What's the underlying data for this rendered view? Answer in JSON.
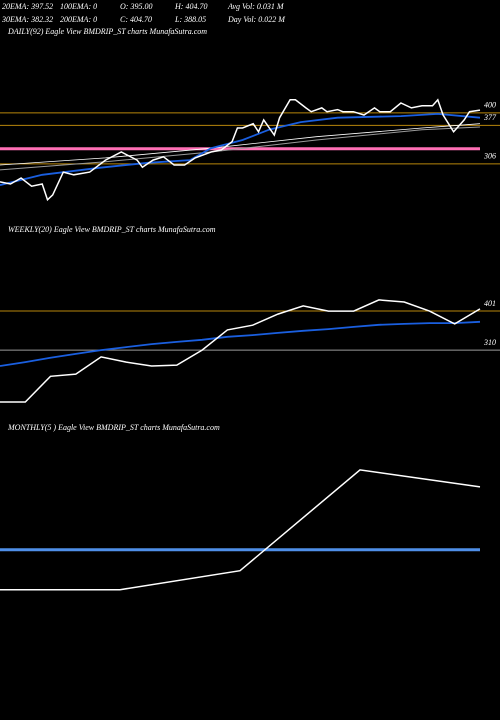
{
  "header": [
    [
      "20EMA: 397.52",
      "100EMA: 0",
      "O: 395.00",
      "H: 404.70",
      "Avg Vol: 0.031 M"
    ],
    [
      "30EMA: 382.32",
      "200EMA: 0",
      "C: 404.70",
      "L: 388.05",
      "Day Vol: 0.022 M"
    ]
  ],
  "chart_data": [
    {
      "type": "line",
      "title": "DAILY(92) Eagle  View  BMDRIP_ST charts MunafaSutra.com",
      "xlim": [
        0,
        91
      ],
      "ylim": [
        212,
        534
      ],
      "yticks": [
        400,
        377,
        306
      ],
      "grid_colors": [
        "#b8860b",
        "#b8860b",
        "#b8860b"
      ],
      "reference_lines": [
        334
      ],
      "reference_color": "#ff6fb5",
      "series": [
        {
          "color": "#9a9a9a",
          "width": 1,
          "x": [
            0,
            20,
            40,
            60,
            80,
            91
          ],
          "values": [
            295,
            310,
            328,
            350,
            369,
            374
          ]
        },
        {
          "color": "#ffffff",
          "width": 0.8,
          "x": [
            0,
            20,
            40,
            60,
            80,
            91
          ],
          "values": [
            304,
            317,
            335,
            356,
            372,
            380
          ]
        },
        {
          "color": "#1a5fe0",
          "width": 1.8,
          "x": [
            0,
            8,
            19,
            28,
            36,
            40,
            46,
            51,
            57,
            64,
            76,
            83,
            91
          ],
          "values": [
            267,
            286,
            299,
            308,
            313,
            335,
            350,
            369,
            383,
            391,
            394,
            398,
            391
          ]
        },
        {
          "color": "#ffffff",
          "width": 1.5,
          "x": [
            0,
            2,
            4,
            6,
            8,
            9,
            10,
            12,
            14,
            17,
            20,
            23,
            26,
            27,
            29,
            31,
            33,
            35,
            37,
            40,
            42,
            44,
            45,
            46,
            48,
            49,
            50,
            52,
            53,
            55,
            56,
            58,
            59,
            61,
            62,
            64,
            65,
            67,
            69,
            71,
            72,
            74,
            76,
            78,
            80,
            82,
            83,
            84,
            86,
            88,
            89,
            91
          ],
          "values": [
            273,
            269,
            280,
            265,
            269,
            240,
            249,
            291,
            286,
            291,
            313,
            328,
            313,
            300,
            313,
            319,
            304,
            304,
            317,
            328,
            332,
            347,
            372,
            372,
            380,
            365,
            387,
            359,
            391,
            424,
            424,
            409,
            402,
            409,
            402,
            406,
            402,
            402,
            396,
            409,
            402,
            402,
            418,
            409,
            413,
            413,
            424,
            396,
            365,
            387,
            402,
            405
          ]
        }
      ]
    },
    {
      "type": "line",
      "title": "WEEKLY(20) Eagle  View  BMDRIP_ST charts MunafaSutra.com",
      "ylim": [
        147,
        555
      ],
      "yticks": [
        401,
        310
      ],
      "grid_colors": [
        "#b8860b",
        "#9a9a9a"
      ],
      "series": [
        {
          "color": "#1a5fe0",
          "width": 1.8,
          "values": [
            273,
            282,
            292,
            301,
            310,
            317,
            324,
            329,
            334,
            341,
            345,
            350,
            355,
            359,
            364,
            369,
            371,
            373,
            373,
            376
          ]
        },
        {
          "color": "#ffffff",
          "width": 1.5,
          "values": [
            189,
            189,
            249,
            254,
            294,
            282,
            273,
            275,
            310,
            357,
            368,
            394,
            413,
            401,
            401,
            427,
            422,
            401,
            371,
            406
          ]
        }
      ]
    },
    {
      "type": "line",
      "title": "MONTHLY(5          ) Eagle  View  BMDRIP_ST charts MunafaSutra.com",
      "ylim": [
        0,
        485
      ],
      "yticks": [],
      "series": [
        {
          "color": "#4f8fe8",
          "width": 3,
          "values": [
            265,
            265,
            265,
            265,
            265
          ]
        },
        {
          "color": "#ffffff",
          "width": 1.5,
          "values": [
            185,
            185,
            223,
            425,
            391
          ]
        }
      ]
    }
  ]
}
